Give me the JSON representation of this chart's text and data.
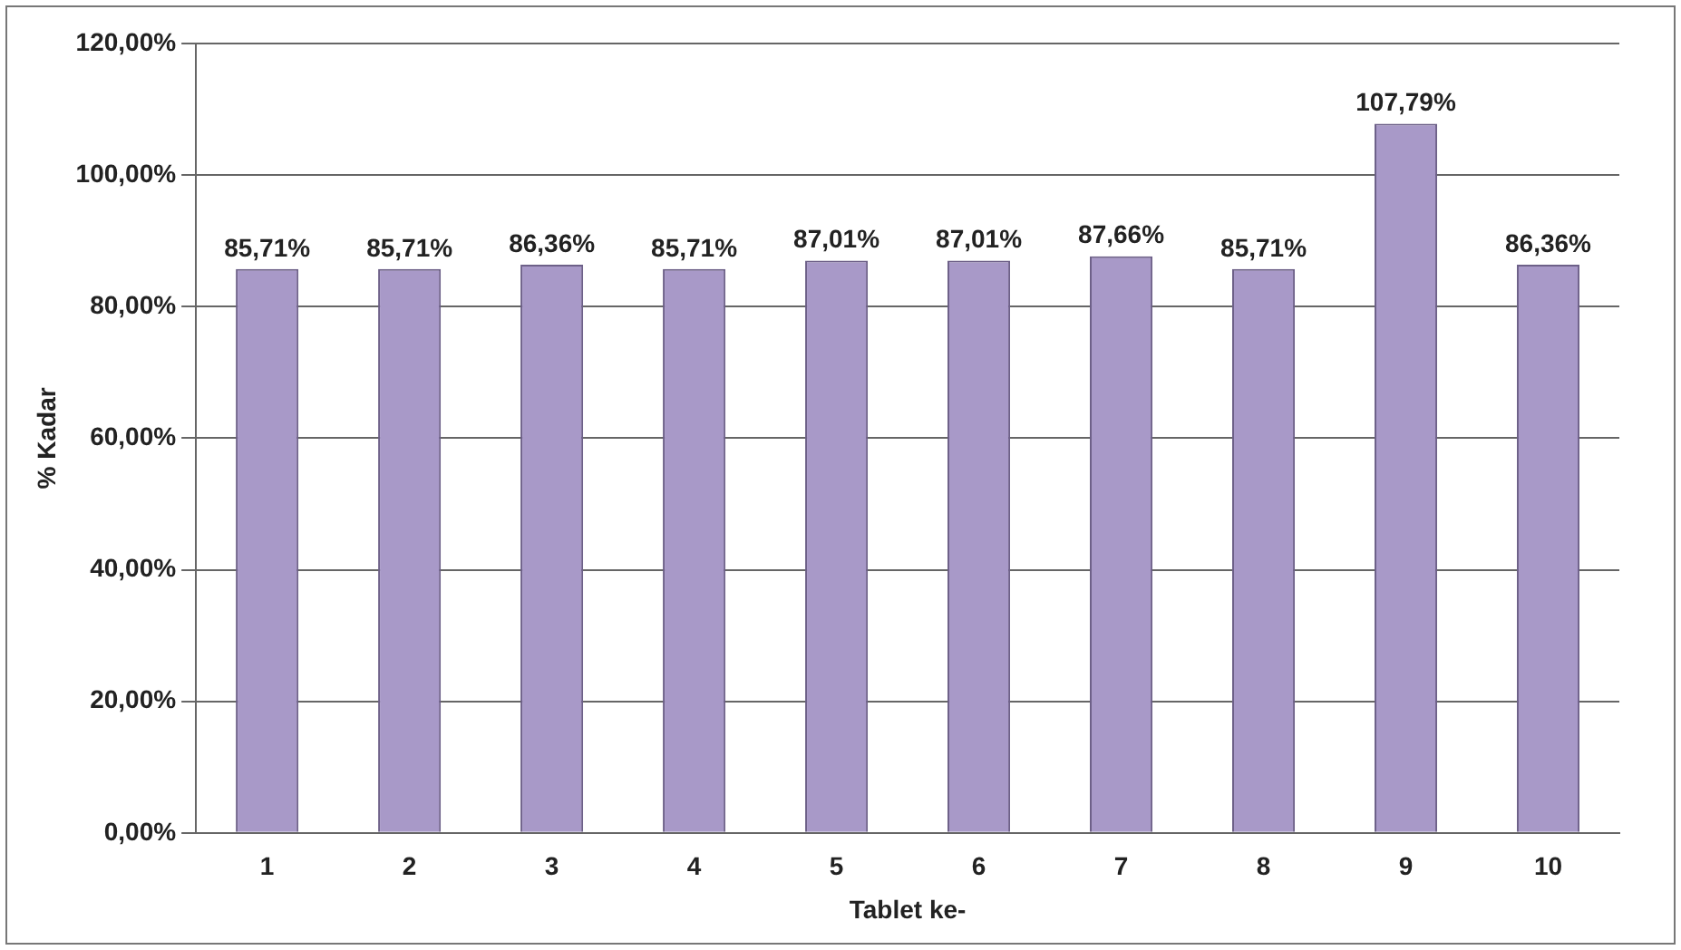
{
  "chart_data": {
    "type": "bar",
    "xlabel": "Tablet ke-",
    "ylabel": "% Kadar",
    "categories": [
      "1",
      "2",
      "3",
      "4",
      "5",
      "6",
      "7",
      "8",
      "9",
      "10"
    ],
    "values": [
      85.71,
      85.71,
      86.36,
      85.71,
      87.01,
      87.01,
      87.66,
      85.71,
      107.79,
      86.36
    ],
    "value_labels": [
      "85,71%",
      "85,71%",
      "86,36%",
      "85,71%",
      "87,01%",
      "87,01%",
      "87,66%",
      "85,71%",
      "107,79%",
      "86,36%"
    ],
    "color": "#a899c8",
    "ylim": [
      0,
      120
    ],
    "yticks": [
      {
        "value": 0,
        "label": "0,00%"
      },
      {
        "value": 20,
        "label": "20,00%"
      },
      {
        "value": 40,
        "label": "40,00%"
      },
      {
        "value": 60,
        "label": "60,00%"
      },
      {
        "value": 80,
        "label": "80,00%"
      },
      {
        "value": 100,
        "label": "100,00%"
      },
      {
        "value": 120,
        "label": "120,00%"
      }
    ],
    "grid": "y",
    "legend": false
  }
}
